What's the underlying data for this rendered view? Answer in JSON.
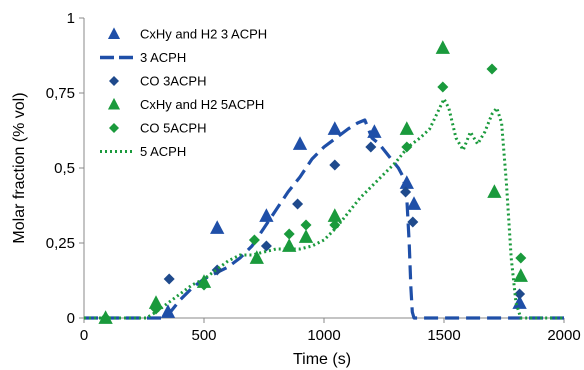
{
  "chart_data": {
    "type": "scatter",
    "title": "",
    "xlabel": "Time (s)",
    "ylabel": "Molar fraction (% vol)",
    "xlim": [
      0,
      2000
    ],
    "ylim": [
      0,
      1
    ],
    "x_ticks": [
      0,
      500,
      1000,
      1500,
      2000
    ],
    "x_tick_labels": [
      "0",
      "500",
      "1000",
      "1500",
      "2000"
    ],
    "y_ticks": [
      0,
      0.25,
      0.5,
      0.75,
      1
    ],
    "y_tick_labels": [
      "0",
      "0,25",
      "0,5",
      "0,75",
      "1"
    ],
    "grid": false,
    "legend_position": "top-left",
    "series": [
      {
        "name": "CxHy and H2 3 ACPH",
        "kind": "triangle",
        "color": "#1f4fa8",
        "points": [
          [
            350,
            0.02
          ],
          [
            555,
            0.3
          ],
          [
            760,
            0.34
          ],
          [
            900,
            0.58
          ],
          [
            1045,
            0.63
          ],
          [
            1210,
            0.62
          ],
          [
            1345,
            0.45
          ],
          [
            1375,
            0.38
          ],
          [
            1815,
            0.05
          ]
        ]
      },
      {
        "name": "3 ACPH",
        "kind": "dashed-line",
        "color": "#1f4fa8",
        "points": [
          [
            0,
            0
          ],
          [
            250,
            0
          ],
          [
            330,
            0
          ],
          [
            360,
            0.02
          ],
          [
            400,
            0.06
          ],
          [
            450,
            0.1
          ],
          [
            500,
            0.13
          ],
          [
            550,
            0.15
          ],
          [
            600,
            0.17
          ],
          [
            650,
            0.2
          ],
          [
            700,
            0.24
          ],
          [
            750,
            0.3
          ],
          [
            800,
            0.36
          ],
          [
            850,
            0.42
          ],
          [
            900,
            0.47
          ],
          [
            950,
            0.53
          ],
          [
            1000,
            0.57
          ],
          [
            1050,
            0.6
          ],
          [
            1100,
            0.63
          ],
          [
            1140,
            0.65
          ],
          [
            1170,
            0.66
          ],
          [
            1200,
            0.6
          ],
          [
            1230,
            0.58
          ],
          [
            1260,
            0.55
          ],
          [
            1290,
            0.52
          ],
          [
            1310,
            0.5
          ],
          [
            1330,
            0.47
          ],
          [
            1345,
            0.4
          ],
          [
            1355,
            0.25
          ],
          [
            1362,
            0.1
          ],
          [
            1368,
            0.02
          ],
          [
            1375,
            0
          ],
          [
            1500,
            0
          ],
          [
            2000,
            0
          ]
        ]
      },
      {
        "name": "CO 3ACPH",
        "kind": "diamond",
        "color": "#1f4a8c",
        "points": [
          [
            355,
            0.13
          ],
          [
            555,
            0.16
          ],
          [
            760,
            0.24
          ],
          [
            890,
            0.38
          ],
          [
            1045,
            0.51
          ],
          [
            1195,
            0.57
          ],
          [
            1340,
            0.42
          ],
          [
            1370,
            0.32
          ],
          [
            1815,
            0.08
          ]
        ]
      },
      {
        "name": "CxHy and H2 5ACPH",
        "kind": "triangle",
        "color": "#1a9a3c",
        "points": [
          [
            90,
            0.0
          ],
          [
            300,
            0.05
          ],
          [
            500,
            0.12
          ],
          [
            720,
            0.2
          ],
          [
            855,
            0.24
          ],
          [
            925,
            0.27
          ],
          [
            1045,
            0.34
          ],
          [
            1345,
            0.63
          ],
          [
            1495,
            0.9
          ],
          [
            1710,
            0.42
          ],
          [
            1820,
            0.14
          ]
        ]
      },
      {
        "name": "CO 5ACPH",
        "kind": "diamond",
        "color": "#1a9a3c",
        "points": [
          [
            90,
            0.0
          ],
          [
            300,
            0.03
          ],
          [
            500,
            0.11
          ],
          [
            710,
            0.26
          ],
          [
            855,
            0.28
          ],
          [
            925,
            0.31
          ],
          [
            1045,
            0.31
          ],
          [
            1345,
            0.57
          ],
          [
            1495,
            0.77
          ],
          [
            1700,
            0.83
          ],
          [
            1820,
            0.2
          ]
        ]
      },
      {
        "name": "5 ACPH",
        "kind": "dotted-line",
        "color": "#1a9a3c",
        "points": [
          [
            0,
            0
          ],
          [
            260,
            0
          ],
          [
            300,
            0.02
          ],
          [
            350,
            0.05
          ],
          [
            400,
            0.08
          ],
          [
            450,
            0.11
          ],
          [
            500,
            0.13
          ],
          [
            550,
            0.16
          ],
          [
            600,
            0.19
          ],
          [
            650,
            0.21
          ],
          [
            700,
            0.21
          ],
          [
            750,
            0.22
          ],
          [
            800,
            0.23
          ],
          [
            850,
            0.23
          ],
          [
            900,
            0.23
          ],
          [
            950,
            0.24
          ],
          [
            1000,
            0.26
          ],
          [
            1050,
            0.3
          ],
          [
            1100,
            0.35
          ],
          [
            1150,
            0.4
          ],
          [
            1200,
            0.44
          ],
          [
            1250,
            0.48
          ],
          [
            1300,
            0.52
          ],
          [
            1350,
            0.57
          ],
          [
            1400,
            0.6
          ],
          [
            1440,
            0.63
          ],
          [
            1470,
            0.68
          ],
          [
            1500,
            0.73
          ],
          [
            1520,
            0.7
          ],
          [
            1550,
            0.6
          ],
          [
            1580,
            0.56
          ],
          [
            1610,
            0.62
          ],
          [
            1640,
            0.58
          ],
          [
            1670,
            0.62
          ],
          [
            1700,
            0.68
          ],
          [
            1720,
            0.7
          ],
          [
            1740,
            0.65
          ],
          [
            1760,
            0.45
          ],
          [
            1780,
            0.2
          ],
          [
            1800,
            0.05
          ],
          [
            1820,
            0.0
          ],
          [
            2000,
            0.0
          ]
        ]
      }
    ]
  }
}
